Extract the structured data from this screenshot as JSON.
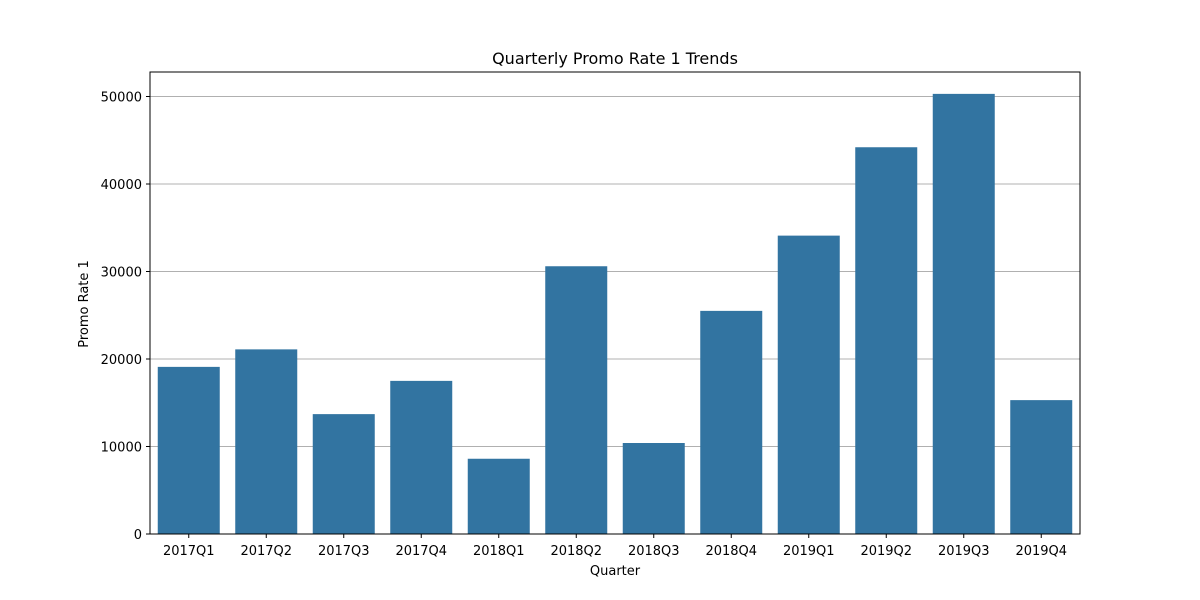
{
  "chart_data": {
    "type": "bar",
    "title": "Quarterly Promo Rate 1 Trends",
    "xlabel": "Quarter",
    "ylabel": "Promo Rate 1",
    "categories": [
      "2017Q1",
      "2017Q2",
      "2017Q3",
      "2017Q4",
      "2018Q1",
      "2018Q2",
      "2018Q3",
      "2018Q4",
      "2019Q1",
      "2019Q2",
      "2019Q3",
      "2019Q4"
    ],
    "values": [
      19100,
      21100,
      13700,
      17500,
      8600,
      30600,
      10400,
      25500,
      34100,
      44200,
      50300,
      15300
    ],
    "ylim": [
      0,
      52800
    ],
    "yticks": [
      0,
      10000,
      20000,
      30000,
      40000,
      50000
    ],
    "grid": "horizontal",
    "bar_color": "#3274a1"
  }
}
